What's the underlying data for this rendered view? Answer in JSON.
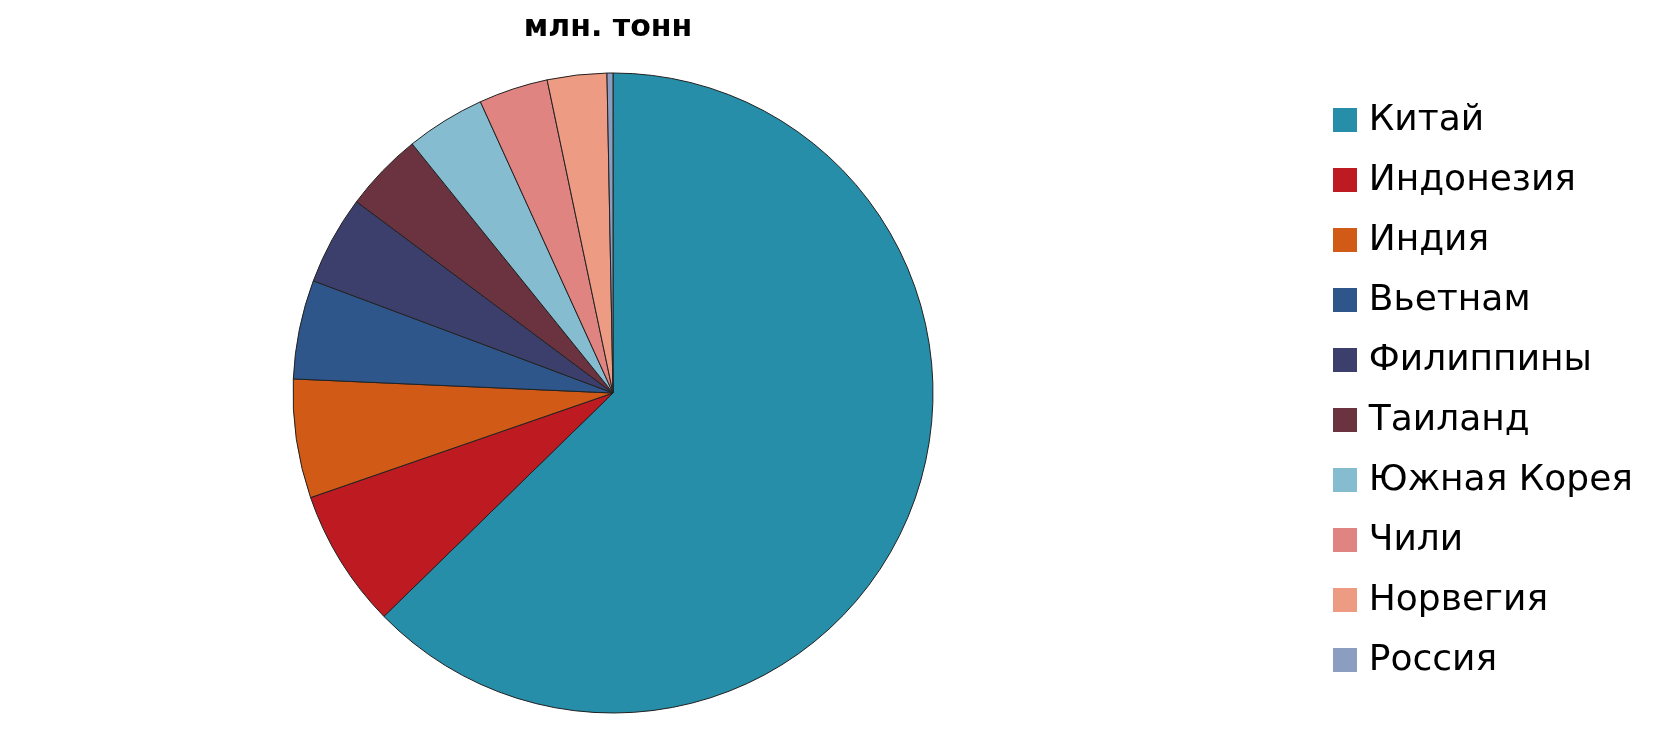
{
  "chart_data": {
    "type": "pie",
    "title": "млн. тонн",
    "categories": [
      "Китай",
      "Индонезия",
      "Индия",
      "Вьетнам",
      "Филиппины",
      "Таиланд",
      "Южная Корея",
      "Чили",
      "Норвегия",
      "Россия"
    ],
    "values": [
      62.7,
      7,
      6,
      5,
      4.5,
      4,
      4,
      3.5,
      3,
      0.3
    ],
    "colors": [
      "#268ea8",
      "#be1a22",
      "#d05a16",
      "#2e568a",
      "#3c3f6c",
      "#6b3340",
      "#86bccf",
      "#e08482",
      "#ee9b83",
      "#8b9dc0"
    ],
    "legend": "right"
  }
}
